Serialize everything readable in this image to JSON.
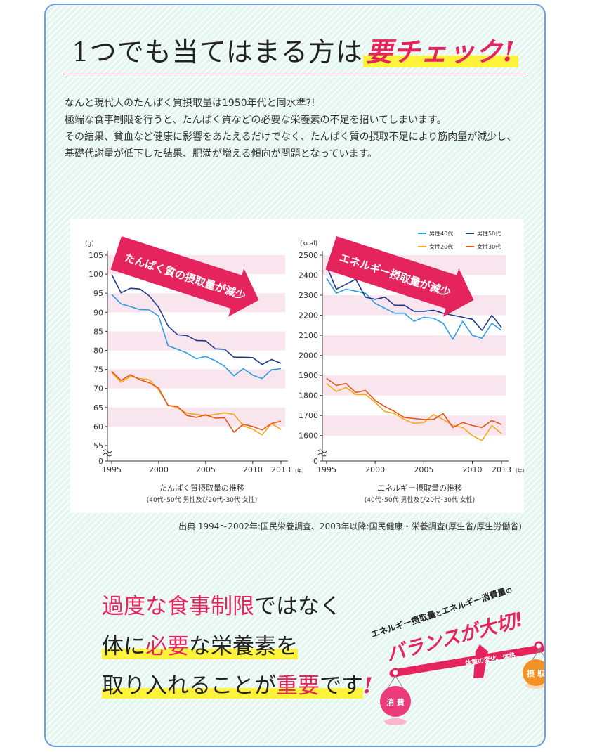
{
  "headline": {
    "prefix": "1つでも当てはまる方は",
    "emphasis": "要チェック",
    "bang": "!"
  },
  "intro": [
    "なんと現代人のたんぱく質摂取量は1950年代と同水準?!",
    "極端な食事制限を行うと、たんぱく質などの必要な栄養素の不足を招いてしまいます。",
    "その結果、貧血など健康に影響をあたえるだけでなく、たんぱく質の摂取不足により筋肉量が減少し、",
    "基礎代謝量が低下した結果、肥満が増える傾向が問題となっています。"
  ],
  "chart_data": [
    {
      "type": "line",
      "banner": "たんぱく質の摂取量が減少",
      "title": "たんぱく質摂取量の推移",
      "subtitle": "(40代･50代 男性及び20代･30代 女性)",
      "yunit": "(g)",
      "xunit": "(年)",
      "x": [
        1995,
        1996,
        1997,
        1998,
        1999,
        2000,
        2001,
        2002,
        2003,
        2004,
        2005,
        2006,
        2007,
        2008,
        2009,
        2010,
        2011,
        2012,
        2013
      ],
      "x_tick_labels": [
        "1995",
        "2000",
        "2005",
        "2010",
        "2013"
      ],
      "y_tick_labels": [
        0,
        55,
        60,
        65,
        70,
        75,
        80,
        85,
        90,
        95,
        100,
        105
      ],
      "ylim": [
        55,
        105
      ],
      "axis_break": true,
      "series": [
        {
          "name": "男性40代",
          "color": "#2a9ee0",
          "values": [
            94.7,
            92.2,
            91.5,
            90.7,
            90.6,
            89.0,
            81.2,
            80.3,
            79.3,
            77.8,
            78.4,
            77.3,
            75.8,
            73.3,
            75.2,
            73.5,
            72.6,
            74.9,
            75.2
          ]
        },
        {
          "name": "男性50代",
          "color": "#1d3a8a",
          "values": [
            99.9,
            95.1,
            96.3,
            96.1,
            94.3,
            91.3,
            86.4,
            84.1,
            83.9,
            82.6,
            82.5,
            80.4,
            80.3,
            78.2,
            78.2,
            78.1,
            76.3,
            77.6,
            76.6
          ]
        },
        {
          "name": "女性20代",
          "color": "#f6a81a",
          "values": [
            74.2,
            71.6,
            73.2,
            72.6,
            72.3,
            69.6,
            65.6,
            64.9,
            63.5,
            63.2,
            62.8,
            63.2,
            63.6,
            63.2,
            60.2,
            59.3,
            57.8,
            60.8,
            59.2
          ]
        },
        {
          "name": "女性30代",
          "color": "#e5561a",
          "values": [
            74.5,
            72.1,
            73.6,
            72.3,
            71.5,
            70.1,
            65.5,
            65.3,
            62.9,
            62.4,
            63.1,
            62.2,
            62.3,
            58.5,
            60.6,
            60.0,
            59.1,
            60.8,
            61.4
          ]
        }
      ],
      "grid": "alternating pink horizontal bands"
    },
    {
      "type": "line",
      "banner": "エネルギー摂取量が減少",
      "title": "エネルギー摂取量の推移",
      "subtitle": "(40代･50代 男性及び20代･30代 女性)",
      "yunit": "(kcal)",
      "xunit": "(年)",
      "x": [
        1995,
        1996,
        1997,
        1998,
        1999,
        2000,
        2001,
        2002,
        2003,
        2004,
        2005,
        2006,
        2007,
        2008,
        2009,
        2010,
        2011,
        2012,
        2013
      ],
      "x_tick_labels": [
        "1995",
        "2000",
        "2005",
        "2010",
        "2013"
      ],
      "y_tick_labels": [
        0,
        1600,
        1700,
        1800,
        1900,
        2000,
        2100,
        2200,
        2300,
        2400,
        2500
      ],
      "ylim": [
        1550,
        2500
      ],
      "axis_break": true,
      "legend": "top-right",
      "series": [
        {
          "name": "男性40代",
          "color": "#2a9ee0",
          "values": [
            2385,
            2310,
            2330,
            2320,
            2310,
            2260,
            2235,
            2210,
            2210,
            2170,
            2190,
            2185,
            2160,
            2080,
            2170,
            2100,
            2085,
            2160,
            2125
          ]
        },
        {
          "name": "男性50代",
          "color": "#1d3a8a",
          "values": [
            2445,
            2330,
            2355,
            2380,
            2290,
            2280,
            2290,
            2250,
            2250,
            2220,
            2220,
            2225,
            2210,
            2200,
            2190,
            2180,
            2125,
            2200,
            2140
          ]
        },
        {
          "name": "女性20代",
          "color": "#f6a81a",
          "values": [
            1860,
            1820,
            1840,
            1805,
            1805,
            1765,
            1720,
            1710,
            1680,
            1660,
            1665,
            1705,
            1680,
            1650,
            1640,
            1600,
            1575,
            1650,
            1610
          ]
        },
        {
          "name": "女性30代",
          "color": "#e5561a",
          "values": [
            1885,
            1850,
            1860,
            1815,
            1825,
            1775,
            1745,
            1720,
            1690,
            1685,
            1680,
            1680,
            1710,
            1640,
            1665,
            1650,
            1640,
            1675,
            1655
          ]
        }
      ],
      "grid": "alternating pink horizontal bands"
    }
  ],
  "source": "出典 1994～2002年:国民栄養調査、2003年以降:国民健康・栄養調査(厚生省/厚生労働省)",
  "message": {
    "l1_pink": "過度な食事制限",
    "l1_rest": "ではなく",
    "l2_a": "体に",
    "l2_pink": "必要",
    "l2_b": "な栄養素を",
    "l3_a": "取り入れることが",
    "l3_pink": "重要",
    "l3_b": "です",
    "l3_bang": "!"
  },
  "balance": {
    "top_a": "エネルギー摂取量",
    "top_and": "と",
    "top_b": "エネルギー消費量",
    "top_no": "の",
    "main": "バランスが大切!",
    "beam": "体重の変化、体格",
    "left": "消 費",
    "right": "摂 取",
    "colors": {
      "pink": "#e5245e",
      "orange": "#f39224",
      "yellow": "#fff23a"
    }
  }
}
